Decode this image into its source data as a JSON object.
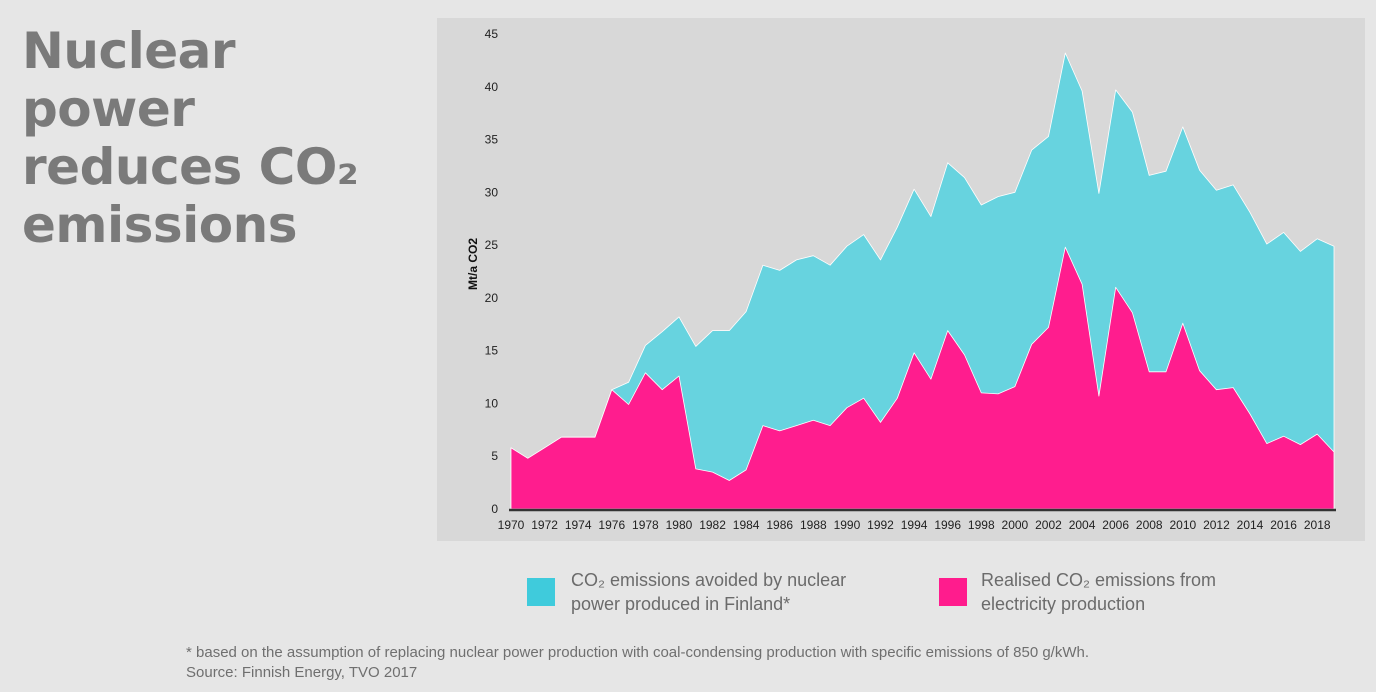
{
  "title_lines": [
    "Nuclear power",
    "reduces CO₂",
    "emissions"
  ],
  "colors": {
    "avoided": "#67d3df",
    "realised": "#ff1d8e",
    "legend_avoided": "#3fcbdc",
    "legend_realised": "#ff1c8d",
    "panel": "#d8d8d8",
    "axis": "#333333"
  },
  "chart_data": {
    "type": "area",
    "stacked": false,
    "xlabel": "",
    "ylabel": "Mt/a CO2",
    "ylim": [
      0,
      45
    ],
    "yticks": [
      0,
      5,
      10,
      15,
      20,
      25,
      30,
      35,
      40,
      45
    ],
    "xlim": [
      1970,
      2019
    ],
    "xticks": [
      1970,
      1972,
      1974,
      1976,
      1978,
      1980,
      1982,
      1984,
      1986,
      1988,
      1990,
      1992,
      1994,
      1996,
      1998,
      2000,
      2002,
      2004,
      2006,
      2008,
      2010,
      2012,
      2014,
      2016,
      2018
    ],
    "grid": false,
    "legend": "bottom",
    "x": [
      1970,
      1971,
      1972,
      1973,
      1974,
      1975,
      1976,
      1977,
      1978,
      1979,
      1980,
      1981,
      1982,
      1983,
      1984,
      1985,
      1986,
      1987,
      1988,
      1989,
      1990,
      1991,
      1992,
      1993,
      1994,
      1995,
      1996,
      1997,
      1998,
      1999,
      2000,
      2001,
      2002,
      2003,
      2004,
      2005,
      2006,
      2007,
      2008,
      2009,
      2010,
      2011,
      2012,
      2013,
      2014,
      2015,
      2016,
      2017,
      2018,
      2019
    ],
    "series": [
      {
        "name": "CO₂ emissions avoided by nuclear power produced in Finland*",
        "values": [
          5.8,
          4.8,
          5.8,
          6.8,
          6.8,
          6.8,
          11.3,
          12.0,
          15.5,
          16.8,
          18.2,
          15.4,
          16.9,
          16.9,
          18.7,
          23.1,
          22.6,
          23.6,
          24.0,
          23.1,
          24.9,
          26.0,
          23.6,
          26.7,
          30.3,
          27.7,
          32.8,
          31.4,
          28.8,
          29.6,
          30.0,
          34.0,
          35.3,
          43.2,
          39.6,
          29.9,
          39.7,
          37.6,
          31.6,
          32.0,
          36.2,
          32.1,
          30.2,
          30.7,
          28.1,
          25.1,
          26.2,
          24.4,
          25.6,
          24.9
        ]
      },
      {
        "name": "Realised CO₂ emissions from electricity production",
        "values": [
          5.8,
          4.8,
          5.8,
          6.8,
          6.8,
          6.8,
          11.3,
          9.9,
          12.9,
          11.3,
          12.6,
          3.8,
          3.5,
          2.7,
          3.7,
          7.9,
          7.4,
          7.9,
          8.4,
          7.9,
          9.6,
          10.5,
          8.2,
          10.5,
          14.8,
          12.3,
          16.9,
          14.6,
          11.0,
          10.9,
          11.6,
          15.6,
          17.2,
          24.8,
          21.3,
          10.7,
          21.0,
          18.6,
          13.0,
          13.0,
          17.6,
          13.1,
          11.3,
          11.5,
          9.0,
          6.2,
          6.9,
          6.1,
          7.1,
          5.4
        ]
      }
    ]
  },
  "legend": {
    "avoided_label": "CO₂ emissions avoided by nuclear\npower produced in Finland*",
    "realised_label": "Realised CO₂ emissions from\nelectricity production"
  },
  "footnote": {
    "line1": "* based on the assumption of replacing nuclear power production with coal-condensing production with specific emissions of 850 g/kWh.",
    "line2": "Source: Finnish Energy, TVO 2017"
  }
}
